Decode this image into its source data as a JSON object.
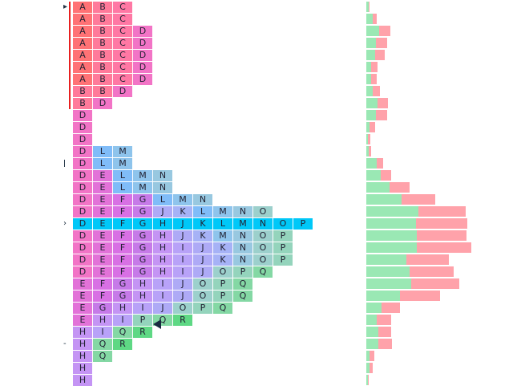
{
  "chart_data": {
    "type": "market-profile",
    "rows": [
      [
        "A",
        "B",
        "C"
      ],
      [
        "A",
        "B",
        "C"
      ],
      [
        "A",
        "B",
        "C",
        "D"
      ],
      [
        "A",
        "B",
        "C",
        "D"
      ],
      [
        "A",
        "B",
        "C",
        "D"
      ],
      [
        "A",
        "B",
        "C",
        "D"
      ],
      [
        "A",
        "B",
        "C",
        "D"
      ],
      [
        "B",
        "B",
        "D"
      ],
      [
        "B",
        "D"
      ],
      [
        "D"
      ],
      [
        "D"
      ],
      [
        "D"
      ],
      [
        "D",
        "L",
        "M"
      ],
      [
        "D",
        "L",
        "M"
      ],
      [
        "D",
        "E",
        "L",
        "M",
        "N"
      ],
      [
        "D",
        "E",
        "L",
        "M",
        "N"
      ],
      [
        "D",
        "E",
        "F",
        "G",
        "L",
        "M",
        "N"
      ],
      [
        "D",
        "E",
        "F",
        "G",
        "J",
        "K",
        "L",
        "M",
        "N",
        "O"
      ],
      [
        "D",
        "E",
        "F",
        "G",
        "H",
        "J",
        "K",
        "L",
        "M",
        "N",
        "O",
        "P"
      ],
      [
        "D",
        "E",
        "F",
        "G",
        "H",
        "J",
        "K",
        "M",
        "N",
        "O",
        "P"
      ],
      [
        "D",
        "E",
        "F",
        "G",
        "H",
        "I",
        "J",
        "K",
        "N",
        "O",
        "P"
      ],
      [
        "D",
        "E",
        "F",
        "G",
        "H",
        "I",
        "J",
        "K",
        "N",
        "O",
        "P"
      ],
      [
        "D",
        "E",
        "F",
        "G",
        "H",
        "I",
        "J",
        "O",
        "P",
        "Q"
      ],
      [
        "E",
        "F",
        "G",
        "H",
        "I",
        "J",
        "O",
        "P",
        "Q"
      ],
      [
        "E",
        "F",
        "G",
        "H",
        "I",
        "J",
        "O",
        "P",
        "Q"
      ],
      [
        "E",
        "G",
        "H",
        "I",
        "J",
        "O",
        "P",
        "Q"
      ],
      [
        "E",
        "H",
        "I",
        "P",
        "Q",
        "R"
      ],
      [
        "H",
        "I",
        "Q",
        "R"
      ],
      [
        "H",
        "Q",
        "R"
      ],
      [
        "H",
        "Q"
      ],
      [
        "H"
      ],
      [
        "H"
      ]
    ],
    "highlight_row": 18,
    "initial_balance_rows": [
      0,
      8
    ],
    "volume_green": [
      3,
      8,
      16,
      12,
      11,
      6,
      6,
      8,
      14,
      12,
      4,
      2,
      3,
      13,
      18,
      29,
      44,
      65,
      62,
      63,
      63,
      50,
      54,
      56,
      42,
      19,
      13,
      15,
      15,
      4,
      4,
      2
    ],
    "volume_pink": [
      1,
      5,
      14,
      14,
      12,
      8,
      7,
      9,
      13,
      14,
      7,
      3,
      3,
      8,
      13,
      25,
      42,
      59,
      64,
      62,
      68,
      53,
      55,
      60,
      50,
      23,
      18,
      16,
      17,
      6,
      4,
      1
    ],
    "colors": {
      "A": "#ff7275",
      "B": "#ff7a9a",
      "C": "#ff78a4",
      "D": "#f274c6",
      "E": "#e272d8",
      "F": "#d870e4",
      "G": "#c67ae8",
      "H": "#c494f4",
      "I": "#b8a2f8",
      "J": "#aeaaf6",
      "K": "#a6b2f6",
      "L": "#80bcf8",
      "M": "#8ec4ec",
      "N": "#98c8e0",
      "O": "#9cd0cc",
      "P": "#94d4bc",
      "Q": "#84d8a4",
      "R": "#5ed884",
      "highlight": "#00c8f8",
      "ib_line": "#e82020",
      "volume_green": "#9ae8b4",
      "volume_pink": "#ffa2aa"
    },
    "markers": [
      {
        "row": 0,
        "glyph": "▸"
      },
      {
        "row": 13,
        "glyph": "ǀ"
      },
      {
        "row": 18,
        "glyph": "›"
      },
      {
        "row": 28,
        "glyph": "-"
      }
    ]
  }
}
